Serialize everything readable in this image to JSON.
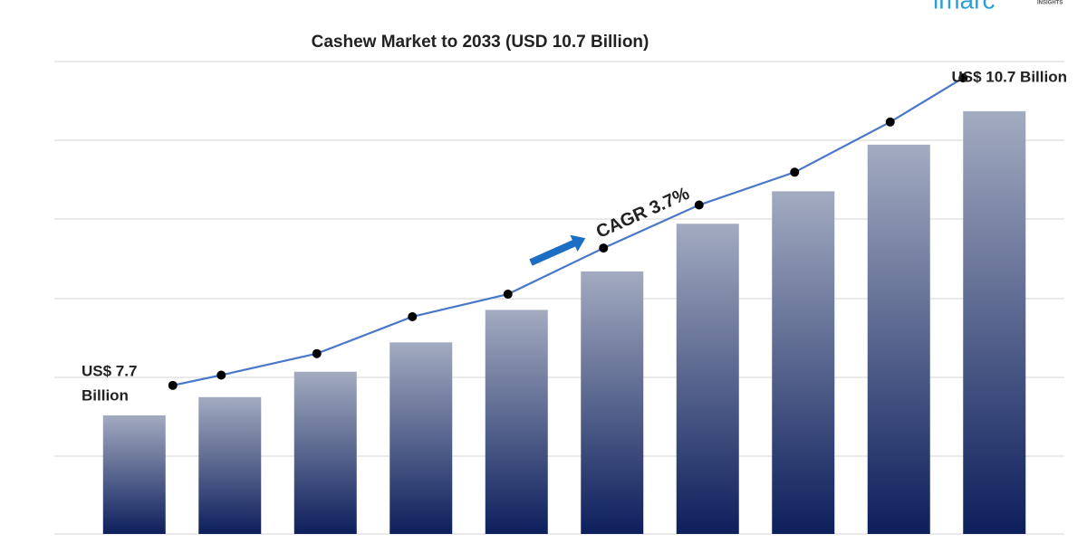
{
  "chart_data": {
    "type": "bar",
    "title": "Cashew Market to 2033 (USD 10.7 Billion)",
    "logo": "imarc",
    "logo_sub": "INSIGHTS",
    "annotations": [
      "US$ 7.7",
      "Billion",
      "US$ 10.7 Billion",
      "CAGR 3.7%"
    ],
    "categories": [
      null,
      null,
      null,
      null,
      null,
      null,
      null,
      null,
      null,
      null
    ],
    "series": [
      {
        "type": "bar",
        "color": "#0d1f5c",
        "values": [
          7.7,
          7.88,
          8.13,
          8.42,
          8.74,
          9.12,
          9.59,
          9.91,
          10.37,
          10.7
        ]
      },
      {
        "type": "line",
        "axis": "y2",
        "color": "#4a78c8",
        "values": [
          7.7,
          7.8,
          8.01,
          8.37,
          8.59,
          9.04,
          9.46,
          9.78,
          10.27,
          10.7
        ]
      }
    ],
    "ylim": [
      6.53,
      11.19
    ],
    "y2lim": [
      6.25,
      10.86
    ]
  }
}
